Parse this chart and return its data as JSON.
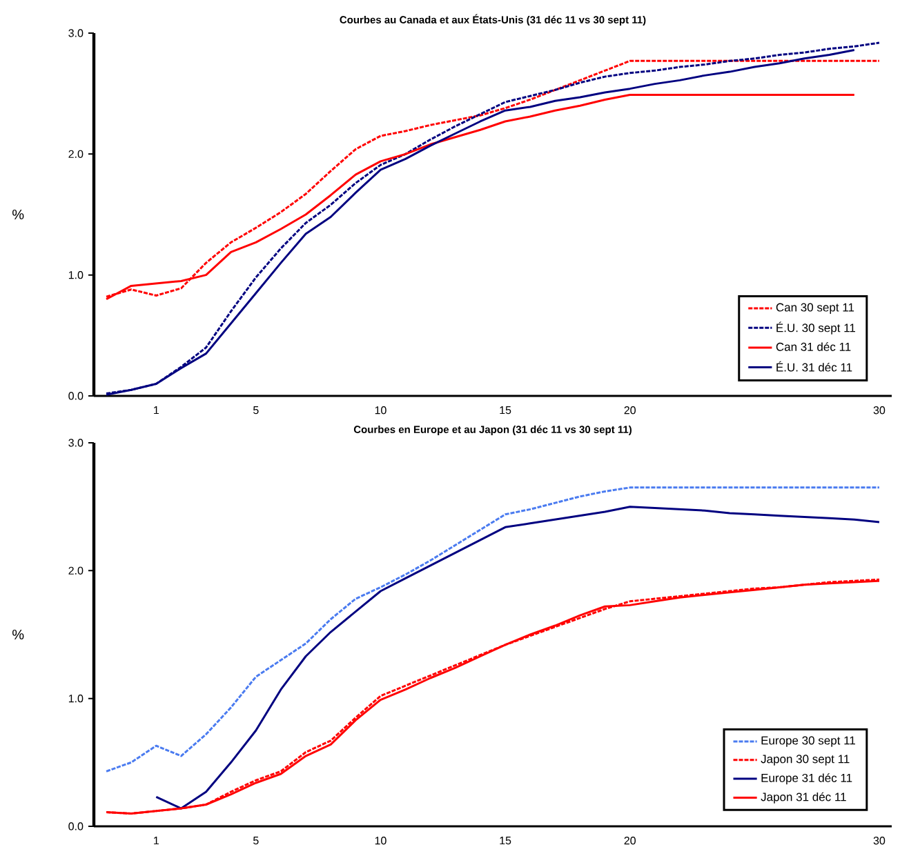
{
  "chart_data": [
    {
      "type": "line",
      "title": "Courbes au Canada et aux États-Unis  (31 déc  11 vs 30 sept 11)",
      "ylabel": "%",
      "categories": [
        null,
        null,
        "1",
        null,
        null,
        null,
        "5",
        null,
        null,
        null,
        null,
        "10",
        null,
        null,
        null,
        null,
        "15",
        null,
        null,
        null,
        null,
        "20",
        null,
        null,
        null,
        null,
        null,
        null,
        null,
        null,
        null,
        "30"
      ],
      "ylim": [
        0,
        3
      ],
      "yticks": [
        {
          "value": 0,
          "label": "0.0"
        },
        {
          "value": 1,
          "label": "1.0"
        },
        {
          "value": 2,
          "label": "2.0"
        },
        {
          "value": 3,
          "label": "3.0"
        }
      ],
      "legend": "bottom right",
      "marker": "none",
      "series": [
        {
          "name": "Can 30 sept 11",
          "color": "#ff0000",
          "line_style": "dashed",
          "values": [
            0.82,
            0.88,
            0.83,
            0.89,
            1.1,
            1.27,
            1.39,
            1.52,
            1.67,
            1.86,
            2.04,
            2.15,
            2.19,
            2.24,
            2.28,
            2.32,
            2.38,
            2.45,
            2.53,
            2.61,
            2.69,
            2.77,
            2.77,
            2.77,
            2.77,
            2.77,
            2.77,
            2.77,
            2.77,
            2.77,
            2.77,
            2.77
          ]
        },
        {
          "name": "É.U. 30 sept 11",
          "color": "#000080",
          "line_style": "dashed",
          "values": [
            0.02,
            0.05,
            0.1,
            0.24,
            0.4,
            0.7,
            0.98,
            1.22,
            1.43,
            1.58,
            1.76,
            1.91,
            2.0,
            2.12,
            2.23,
            2.33,
            2.43,
            2.48,
            2.53,
            2.59,
            2.64,
            2.67,
            2.69,
            2.72,
            2.74,
            2.77,
            2.79,
            2.82,
            2.84,
            2.87,
            2.89,
            2.92
          ]
        },
        {
          "name": "Can 31 déc 11",
          "color": "#ff0000",
          "line_style": "solid",
          "values": [
            0.8,
            0.91,
            0.93,
            0.95,
            1.0,
            1.19,
            1.27,
            1.38,
            1.5,
            1.66,
            1.83,
            1.94,
            2.0,
            2.08,
            2.14,
            2.2,
            2.27,
            2.31,
            2.36,
            2.4,
            2.45,
            2.49,
            2.49,
            2.49,
            2.49,
            2.49,
            2.49,
            2.49,
            2.49,
            2.49,
            2.49,
            null
          ]
        },
        {
          "name": "É.U. 31 déc 11",
          "color": "#000080",
          "line_style": "solid",
          "values": [
            0.01,
            0.05,
            0.1,
            0.23,
            0.35,
            0.6,
            0.85,
            1.1,
            1.34,
            1.48,
            1.68,
            1.87,
            1.96,
            2.07,
            2.17,
            2.27,
            2.36,
            2.39,
            2.44,
            2.47,
            2.51,
            2.54,
            2.58,
            2.61,
            2.65,
            2.68,
            2.72,
            2.75,
            2.79,
            2.82,
            2.86,
            null
          ]
        }
      ]
    },
    {
      "type": "line",
      "title": "Courbes en Europe et au Japon (31 déc  11 vs 30 sept 11)",
      "ylabel": "%",
      "categories": [
        null,
        null,
        "1",
        null,
        null,
        null,
        "5",
        null,
        null,
        null,
        null,
        "10",
        null,
        null,
        null,
        null,
        "15",
        null,
        null,
        null,
        null,
        "20",
        null,
        null,
        null,
        null,
        null,
        null,
        null,
        null,
        null,
        "30"
      ],
      "ylim": [
        0,
        3
      ],
      "yticks": [
        {
          "value": 0,
          "label": "0.0"
        },
        {
          "value": 1,
          "label": "1.0"
        },
        {
          "value": 2,
          "label": "2.0"
        },
        {
          "value": 3,
          "label": "3.0"
        }
      ],
      "legend": "bottom right",
      "marker": "none",
      "series": [
        {
          "name": "Europe 30 sept 11",
          "color": "#4a7bf0",
          "line_style": "dashed",
          "values": [
            0.43,
            0.5,
            0.63,
            0.55,
            0.72,
            0.93,
            1.17,
            1.3,
            1.43,
            1.62,
            1.78,
            1.87,
            1.97,
            2.08,
            2.2,
            2.32,
            2.44,
            2.48,
            2.53,
            2.58,
            2.62,
            2.65,
            2.65,
            2.65,
            2.65,
            2.65,
            2.65,
            2.65,
            2.65,
            2.65,
            2.65,
            2.65
          ]
        },
        {
          "name": "Japon 30 sept 11",
          "color": "#ff0000",
          "line_style": "dashed",
          "values": [
            0.11,
            0.1,
            0.12,
            0.14,
            0.17,
            0.27,
            0.36,
            0.43,
            0.58,
            0.67,
            0.85,
            1.02,
            1.1,
            1.18,
            1.26,
            1.34,
            1.42,
            1.49,
            1.56,
            1.63,
            1.7,
            1.76,
            1.78,
            1.8,
            1.82,
            1.84,
            1.86,
            1.87,
            1.89,
            1.91,
            1.92,
            1.93
          ]
        },
        {
          "name": "Europe 31 déc 11",
          "color": "#000080",
          "line_style": "solid",
          "values": [
            null,
            null,
            0.23,
            0.14,
            0.27,
            0.5,
            0.75,
            1.07,
            1.33,
            1.52,
            1.68,
            1.84,
            1.94,
            2.04,
            2.14,
            2.24,
            2.34,
            2.37,
            2.4,
            2.43,
            2.46,
            2.5,
            2.49,
            2.48,
            2.47,
            2.45,
            2.44,
            2.43,
            2.42,
            2.41,
            2.4,
            2.38
          ]
        },
        {
          "name": "Japon 31 déc 11",
          "color": "#ff0000",
          "line_style": "solid",
          "values": [
            0.11,
            0.1,
            0.12,
            0.14,
            0.17,
            0.25,
            0.34,
            0.41,
            0.55,
            0.64,
            0.83,
            0.99,
            1.07,
            1.16,
            1.24,
            1.33,
            1.42,
            1.5,
            1.57,
            1.65,
            1.72,
            1.73,
            1.76,
            1.79,
            1.81,
            1.83,
            1.85,
            1.87,
            1.89,
            1.9,
            1.91,
            1.92
          ]
        }
      ]
    }
  ]
}
